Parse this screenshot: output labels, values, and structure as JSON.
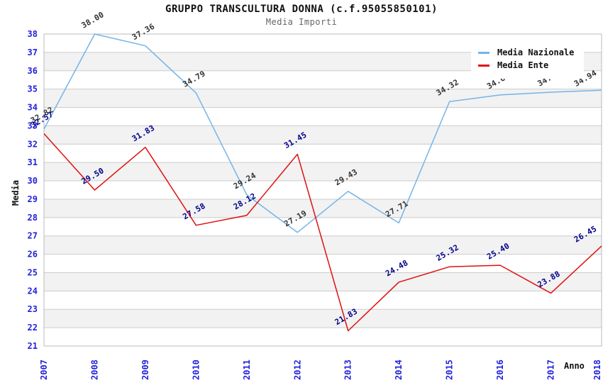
{
  "page": {
    "title": "GRUPPO TRANSCULTURA DONNA (c.f.95055850101)",
    "subtitle": "Media Importi"
  },
  "chart_data": {
    "type": "line",
    "title": "GRUPPO TRANSCULTURA DONNA (c.f.95055850101)",
    "subtitle": "Media Importi",
    "xlabel": "Anno",
    "ylabel": "Media",
    "x": [
      "2007",
      "2008",
      "2009",
      "2010",
      "2011",
      "2012",
      "2013",
      "2014",
      "2015",
      "2016",
      "2017",
      "2018"
    ],
    "series": [
      {
        "name": "Media Nazionale",
        "color": "#74b4e8",
        "label_color": "#333333",
        "values": [
          32.82,
          38.0,
          37.36,
          34.79,
          29.24,
          27.19,
          29.43,
          27.71,
          34.32,
          34.68,
          34.83,
          34.94
        ]
      },
      {
        "name": "Media Ente",
        "color": "#e01010",
        "label_color": "#00008b",
        "values": [
          32.57,
          29.5,
          31.83,
          27.58,
          28.12,
          31.45,
          21.83,
          24.48,
          25.32,
          25.4,
          23.88,
          26.45
        ]
      }
    ],
    "ylim": [
      21,
      38
    ],
    "ytick_step": 1,
    "grid": true,
    "grid_color": "#cccccc",
    "band_color": "#f2f2f2",
    "plot_border_color": "#bbbbbb",
    "tick_label_color": "#2222dd",
    "legend_position": "top-right",
    "data_labels": true
  }
}
